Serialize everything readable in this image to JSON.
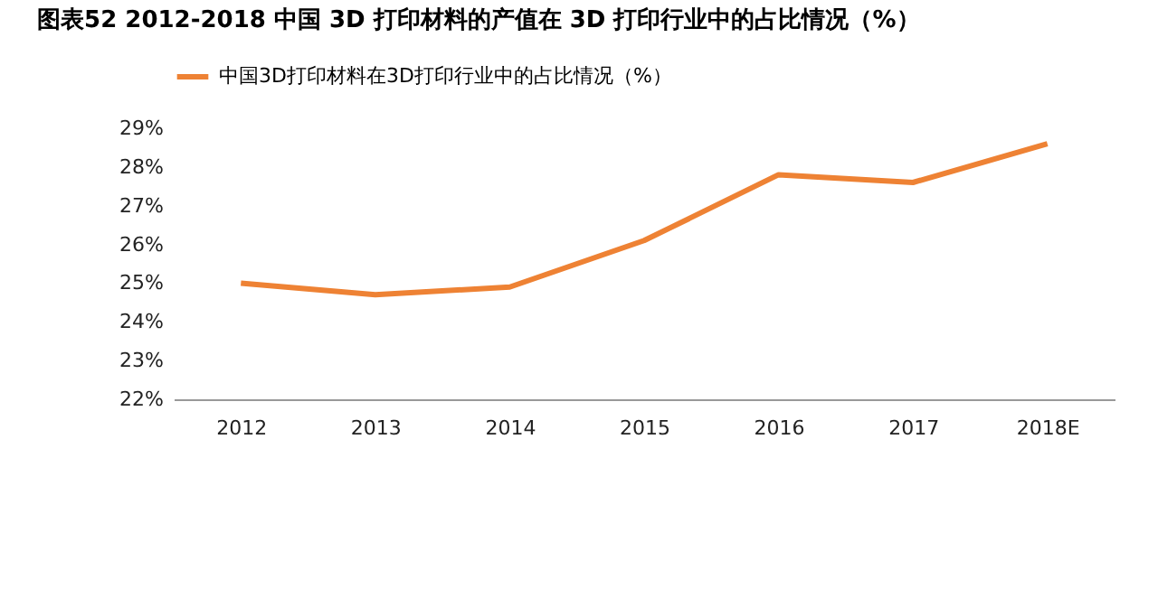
{
  "chart_data": {
    "type": "line",
    "title": "图表52   2012-2018 中国 3D 打印材料的产值在 3D 打印行业中的占比情况（%）",
    "categories": [
      "2012",
      "2013",
      "2014",
      "2015",
      "2016",
      "2017",
      "2018E"
    ],
    "series": [
      {
        "name": "中国3D打印材料在3D打印行业中的占比情况（%）",
        "color": "#ee8234",
        "values": [
          25.0,
          24.7,
          24.9,
          26.1,
          27.8,
          27.6,
          28.6
        ]
      }
    ],
    "ylim": [
      22,
      29
    ],
    "yticks": [
      {
        "value": 22,
        "label": "22%"
      },
      {
        "value": 23,
        "label": "23%"
      },
      {
        "value": 24,
        "label": "24%"
      },
      {
        "value": 25,
        "label": "25%"
      },
      {
        "value": 26,
        "label": "26%"
      },
      {
        "value": 27,
        "label": "27%"
      },
      {
        "value": 28,
        "label": "28%"
      },
      {
        "value": 29,
        "label": "29%"
      }
    ],
    "grid": false,
    "legend": "top",
    "marker": "none",
    "line_style": "solid"
  }
}
